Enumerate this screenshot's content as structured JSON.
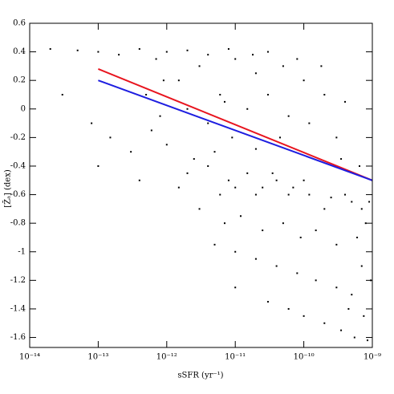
{
  "chart_data": {
    "type": "scatter",
    "xlabel": "sSFR (yr⁻¹)",
    "ylabel": "[Z̄ₐ] (dex)",
    "xscale": "log",
    "xlim": [
      1e-14,
      1e-09
    ],
    "xticks": [
      {
        "value": 1e-14,
        "label": "10⁻¹⁴"
      },
      {
        "value": 1e-13,
        "label": "10⁻¹³"
      },
      {
        "value": 1e-12,
        "label": "10⁻¹²"
      },
      {
        "value": 1e-11,
        "label": "10⁻¹¹"
      },
      {
        "value": 1e-10,
        "label": "10⁻¹⁰"
      },
      {
        "value": 1e-09,
        "label": "10⁻⁹"
      }
    ],
    "ylim": [
      -1.67,
      0.6
    ],
    "yticks": [
      0.6,
      0.4,
      0.2,
      0,
      -0.2,
      -0.4,
      -0.6,
      -0.8,
      -1,
      -1.2,
      -1.4,
      -1.6
    ],
    "series": [
      {
        "type": "scatter",
        "color": "#000000",
        "x": [
          2e-14,
          5e-14,
          1e-13,
          2e-13,
          4e-13,
          7e-13,
          1e-12,
          2e-12,
          4e-12,
          8e-12,
          1.5e-12,
          3e-12,
          6e-12,
          1e-11,
          2e-11,
          3e-11,
          5e-11,
          1e-10,
          2e-10,
          4e-10,
          5e-13,
          8e-13,
          2e-12,
          4e-12,
          7e-12,
          1.5e-11,
          3e-11,
          6e-11,
          1.2e-10,
          3e-10,
          3e-14,
          8e-14,
          1.5e-13,
          3e-13,
          6e-13,
          1e-12,
          2.5e-12,
          5e-12,
          9e-12,
          2e-11,
          2e-12,
          4e-12,
          8e-12,
          1.5e-11,
          2.5e-11,
          4e-11,
          7e-11,
          1.2e-10,
          2.5e-10,
          5e-10,
          6e-12,
          1e-11,
          2e-11,
          3.5e-11,
          6e-11,
          1e-10,
          2e-10,
          4e-10,
          7e-10,
          9e-10,
          3e-12,
          7e-12,
          1.2e-11,
          2.5e-11,
          5e-11,
          9e-11,
          1.5e-10,
          3e-10,
          6e-10,
          8e-10,
          5e-12,
          1e-11,
          2e-11,
          4e-11,
          8e-11,
          1.5e-10,
          3e-10,
          5e-10,
          7e-10,
          9.5e-10,
          1e-11,
          3e-11,
          6e-11,
          1e-10,
          2e-10,
          3.5e-10,
          5.5e-10,
          7.5e-10,
          8.5e-10,
          4.5e-10,
          1e-13,
          4e-13,
          1.5e-12,
          9e-13,
          1.8e-11,
          4.5e-11,
          8e-11,
          1.8e-10,
          3.5e-10,
          6.5e-10
        ],
        "values": [
          0.42,
          0.41,
          0.4,
          0.38,
          0.42,
          0.35,
          0.4,
          0.41,
          0.38,
          0.42,
          0.2,
          0.3,
          0.1,
          0.35,
          0.25,
          0.4,
          0.3,
          0.2,
          0.1,
          0.05,
          0.1,
          -0.05,
          0,
          -0.1,
          0.05,
          0,
          0.1,
          -0.05,
          -0.1,
          -0.2,
          0.1,
          -0.1,
          -0.2,
          -0.3,
          -0.15,
          -0.25,
          -0.35,
          -0.3,
          -0.2,
          -0.28,
          -0.45,
          -0.4,
          -0.5,
          -0.45,
          -0.55,
          -0.5,
          -0.55,
          -0.6,
          -0.62,
          -0.65,
          -0.6,
          -0.55,
          -0.6,
          -0.45,
          -0.6,
          -0.5,
          -0.7,
          -0.6,
          -0.7,
          -0.65,
          -0.7,
          -0.8,
          -0.75,
          -0.85,
          -0.8,
          -0.9,
          -0.85,
          -0.95,
          -0.9,
          -0.8,
          -0.95,
          -1.0,
          -1.05,
          -1.1,
          -1.15,
          -1.2,
          -1.25,
          -1.3,
          -1.1,
          -1.2,
          -1.25,
          -1.35,
          -1.4,
          -1.45,
          -1.5,
          -1.55,
          -1.6,
          -1.45,
          -1.62,
          -1.4,
          -0.4,
          -0.5,
          -0.55,
          0.2,
          0.38,
          -0.2,
          0.35,
          0.3,
          -0.35,
          -0.4
        ]
      },
      {
        "type": "line",
        "color": "#e8141e",
        "x": [
          1e-13,
          1e-09
        ],
        "values": [
          0.28,
          -0.5
        ]
      },
      {
        "type": "line",
        "color": "#1e1ee0",
        "x": [
          1e-13,
          1e-09
        ],
        "values": [
          0.2,
          -0.5
        ]
      }
    ]
  }
}
